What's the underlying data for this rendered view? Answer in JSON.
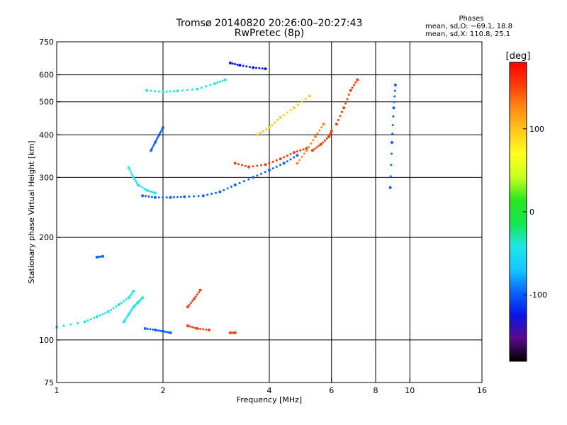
{
  "window": {
    "title_line1": "Tromsø 20140820 20:26:00–20:27:43",
    "title_line2": "RwPretec (8p)"
  },
  "stats": {
    "heading": "Phases",
    "line_o": "mean, sd,O: −69.1, 18.8",
    "line_x": "mean, sd,X: 110.8, 25.1"
  },
  "colorbar": {
    "label": "[deg]",
    "ticks": [
      {
        "value": 100,
        "label": "100"
      },
      {
        "value": 0,
        "label": "0"
      },
      {
        "value": -100,
        "label": "-100"
      }
    ],
    "range": [
      -180,
      180
    ],
    "colors": [
      "#000000",
      "#5a0a8c",
      "#0a14e6",
      "#0a64ff",
      "#14c8ff",
      "#1ee6e6",
      "#14e650",
      "#28e61e",
      "#c8ff1e",
      "#ffff1e",
      "#ffc81e",
      "#ff8c14",
      "#ff3c0a",
      "#ff0000"
    ]
  },
  "chart_data": {
    "type": "scatter",
    "xlabel": "Frequency [MHz]",
    "ylabel": "Stationary phase Virtual Height [km]",
    "x_scale": "log",
    "y_scale": "log",
    "xlim": [
      1,
      16
    ],
    "ylim": [
      75,
      750
    ],
    "grid": true,
    "x_ticks": [
      1,
      2,
      4,
      6,
      8,
      10,
      16
    ],
    "x_tick_labels": [
      "1",
      "2",
      "4",
      "6",
      "8",
      "10",
      "16"
    ],
    "x_gridlines": [
      2,
      4,
      6,
      8,
      10
    ],
    "y_ticks": [
      75,
      100,
      200,
      300,
      400,
      500,
      600,
      750
    ],
    "y_tick_labels": [
      "75",
      "100",
      "200",
      "300",
      "400",
      "500",
      "600",
      "750"
    ],
    "y_gridlines": [
      100,
      200,
      300,
      400,
      500,
      600
    ],
    "traces": [
      {
        "name": "",
        "points": [
          [
            1.0,
            109
          ],
          [
            1.2,
            113
          ],
          [
            1.3,
            117
          ],
          [
            1.4,
            121
          ],
          [
            1.5,
            127
          ],
          [
            1.6,
            133
          ],
          [
            1.65,
            139
          ]
        ],
        "phase": -40
      },
      {
        "name": "",
        "points": [
          [
            1.55,
            113
          ],
          [
            1.6,
            119
          ],
          [
            1.65,
            125
          ],
          [
            1.7,
            129
          ],
          [
            1.75,
            133
          ]
        ],
        "phase": -45
      },
      {
        "name": "",
        "points": [
          [
            1.78,
            108
          ],
          [
            1.9,
            107
          ],
          [
            2.0,
            106
          ],
          [
            2.1,
            105
          ]
        ],
        "phase": -110
      },
      {
        "name": "",
        "points": [
          [
            1.75,
            265
          ],
          [
            1.9,
            262
          ],
          [
            2.1,
            262
          ],
          [
            2.3,
            263
          ],
          [
            2.6,
            265
          ],
          [
            2.9,
            272
          ],
          [
            3.2,
            285
          ],
          [
            3.6,
            300
          ],
          [
            4.0,
            315
          ],
          [
            4.4,
            330
          ],
          [
            4.8,
            348
          ]
        ],
        "phase": -100
      },
      {
        "name": "",
        "points": [
          [
            1.6,
            320
          ],
          [
            1.65,
            300
          ],
          [
            1.7,
            285
          ],
          [
            1.8,
            275
          ],
          [
            1.9,
            270
          ]
        ],
        "phase": -35
      },
      {
        "name": "",
        "points": [
          [
            3.2,
            330
          ],
          [
            3.5,
            322
          ],
          [
            3.9,
            327
          ],
          [
            4.3,
            340
          ],
          [
            4.7,
            355
          ],
          [
            5.1,
            365
          ]
        ],
        "phase": 140
      },
      {
        "name": "",
        "points": [
          [
            5.3,
            360
          ],
          [
            5.6,
            375
          ],
          [
            5.9,
            395
          ],
          [
            6.0,
            410
          ]
        ],
        "phase": 150
      },
      {
        "name": "",
        "points": [
          [
            2.35,
            110
          ],
          [
            2.5,
            108
          ],
          [
            2.7,
            107
          ]
        ],
        "phase": 140
      },
      {
        "name": "",
        "points": [
          [
            2.35,
            125
          ],
          [
            2.45,
            132
          ],
          [
            2.55,
            140
          ]
        ],
        "phase": 150
      },
      {
        "name": "",
        "points": [
          [
            3.1,
            650
          ],
          [
            3.3,
            640
          ],
          [
            3.6,
            630
          ],
          [
            3.9,
            625
          ]
        ],
        "phase": -120
      },
      {
        "name": "",
        "points": [
          [
            1.8,
            540
          ],
          [
            2.0,
            535
          ],
          [
            2.2,
            538
          ],
          [
            2.5,
            545
          ],
          [
            2.8,
            565
          ],
          [
            3.0,
            580
          ]
        ],
        "phase": -55
      },
      {
        "name": "",
        "points": [
          [
            1.3,
            175
          ],
          [
            1.35,
            176
          ]
        ],
        "phase": -110
      },
      {
        "name": "",
        "points": [
          [
            3.1,
            105
          ],
          [
            3.2,
            105
          ]
        ],
        "phase": 140
      },
      {
        "name": "",
        "points": [
          [
            6.2,
            430
          ],
          [
            6.5,
            480
          ],
          [
            6.8,
            540
          ],
          [
            7.1,
            580
          ]
        ],
        "phase": 150
      },
      {
        "name": "",
        "points": [
          [
            8.8,
            280
          ],
          [
            8.9,
            380
          ],
          [
            9.0,
            480
          ],
          [
            9.1,
            560
          ]
        ],
        "phase": -110
      },
      {
        "name": "",
        "points": [
          [
            1.85,
            360
          ],
          [
            1.9,
            380
          ],
          [
            1.95,
            400
          ],
          [
            2.0,
            420
          ]
        ],
        "phase": -110
      },
      {
        "name": "",
        "points": [
          [
            3.7,
            400
          ],
          [
            4.0,
            420
          ],
          [
            4.3,
            450
          ],
          [
            4.7,
            480
          ],
          [
            5.2,
            520
          ]
        ],
        "phase": 100
      },
      {
        "name": "",
        "points": [
          [
            4.8,
            330
          ],
          [
            5.1,
            360
          ],
          [
            5.4,
            395
          ],
          [
            5.7,
            430
          ]
        ],
        "phase": 130
      }
    ]
  }
}
